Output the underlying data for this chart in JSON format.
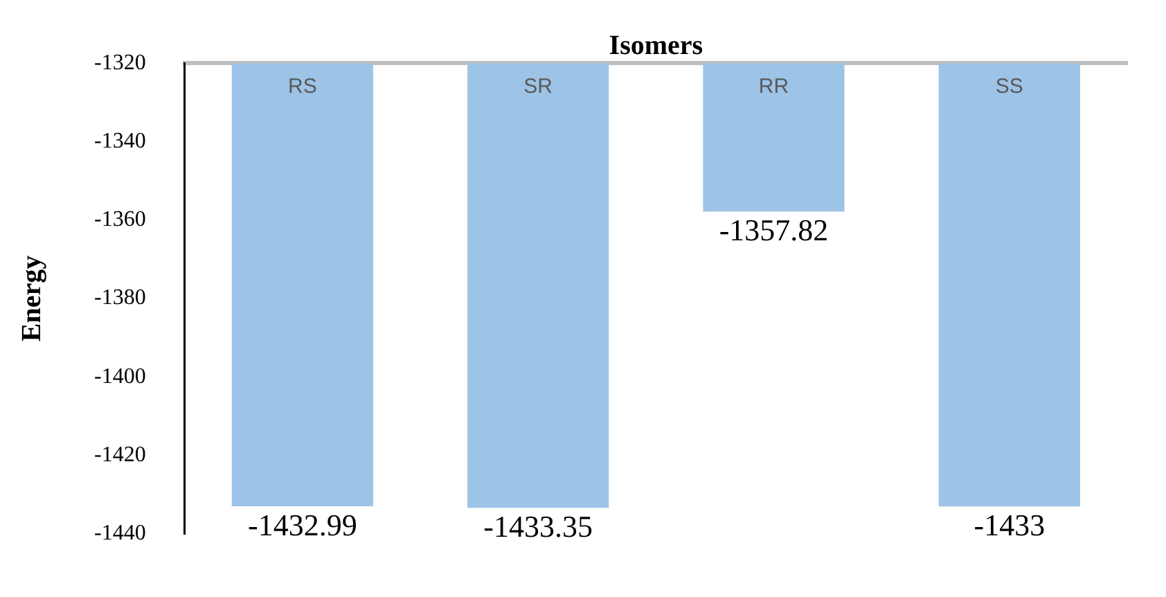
{
  "chart_data": {
    "type": "bar",
    "xlabel": "Isomers",
    "ylabel": "Energy",
    "categories": [
      "RS",
      "SR",
      "RR",
      "SS"
    ],
    "values": [
      -1432.99,
      -1433.35,
      -1357.82,
      -1433
    ],
    "color": "#9dc3e6",
    "value_labels": [
      "-1432.99",
      "-1433.35",
      "-1357.82",
      "-1433"
    ],
    "ylim": [
      -1440,
      -1320
    ],
    "yticks": [
      -1440,
      -1420,
      -1400,
      -1380,
      -1360,
      -1340,
      -1320
    ],
    "grid": false,
    "legend": false
  }
}
